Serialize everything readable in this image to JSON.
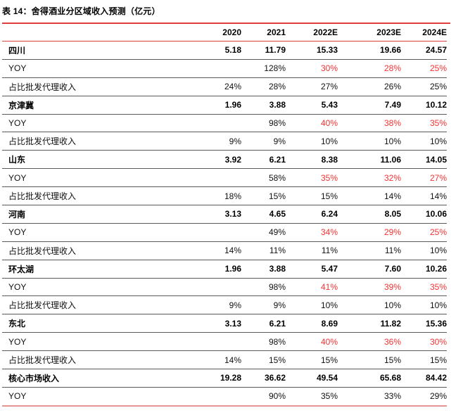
{
  "title": "表 14：舍得酒业分区域收入预测（亿元）",
  "colors": {
    "accent_red": "#e03c3c",
    "value_red": "#f53232",
    "row_separator": "#595959",
    "bottom_line": "#e59494",
    "text": "#111111"
  },
  "table": {
    "columns": [
      "",
      "2020",
      "2021",
      "2022E",
      "2023E",
      "2024E"
    ],
    "rows": [
      {
        "label": "四川",
        "bold": true,
        "values": [
          "5.18",
          "11.79",
          "15.33",
          "19.66",
          "24.57"
        ],
        "red": []
      },
      {
        "label": "YOY",
        "bold": false,
        "values": [
          "",
          "128%",
          "30%",
          "28%",
          "25%"
        ],
        "red": [
          2,
          3,
          4
        ]
      },
      {
        "label": "占比批发代理收入",
        "bold": false,
        "values": [
          "24%",
          "28%",
          "27%",
          "26%",
          "25%"
        ],
        "red": []
      },
      {
        "label": "京津冀",
        "bold": true,
        "values": [
          "1.96",
          "3.88",
          "5.43",
          "7.49",
          "10.12"
        ],
        "red": []
      },
      {
        "label": "YOY",
        "bold": false,
        "values": [
          "",
          "98%",
          "40%",
          "38%",
          "35%"
        ],
        "red": [
          2,
          3,
          4
        ]
      },
      {
        "label": "占比批发代理收入",
        "bold": false,
        "values": [
          "9%",
          "9%",
          "10%",
          "10%",
          "10%"
        ],
        "red": []
      },
      {
        "label": "山东",
        "bold": true,
        "values": [
          "3.92",
          "6.21",
          "8.38",
          "11.06",
          "14.05"
        ],
        "red": []
      },
      {
        "label": "YOY",
        "bold": false,
        "values": [
          "",
          "58%",
          "35%",
          "32%",
          "27%"
        ],
        "red": [
          2,
          3,
          4
        ]
      },
      {
        "label": "占比批发代理收入",
        "bold": false,
        "values": [
          "18%",
          "15%",
          "15%",
          "14%",
          "14%"
        ],
        "red": []
      },
      {
        "label": "河南",
        "bold": true,
        "values": [
          "3.13",
          "4.65",
          "6.24",
          "8.05",
          "10.06"
        ],
        "red": []
      },
      {
        "label": "YOY",
        "bold": false,
        "values": [
          "",
          "49%",
          "34%",
          "29%",
          "25%"
        ],
        "red": [
          2,
          3,
          4
        ]
      },
      {
        "label": "占比批发代理收入",
        "bold": false,
        "values": [
          "14%",
          "11%",
          "11%",
          "11%",
          "10%"
        ],
        "red": []
      },
      {
        "label": "环太湖",
        "bold": true,
        "values": [
          "1.96",
          "3.88",
          "5.47",
          "7.60",
          "10.26"
        ],
        "red": []
      },
      {
        "label": "YOY",
        "bold": false,
        "values": [
          "",
          "98%",
          "41%",
          "39%",
          "35%"
        ],
        "red": [
          2,
          3,
          4
        ]
      },
      {
        "label": "占比批发代理收入",
        "bold": false,
        "values": [
          "9%",
          "9%",
          "10%",
          "10%",
          "10%"
        ],
        "red": []
      },
      {
        "label": "东北",
        "bold": true,
        "values": [
          "3.13",
          "6.21",
          "8.69",
          "11.82",
          "15.36"
        ],
        "red": []
      },
      {
        "label": "YOY",
        "bold": false,
        "values": [
          "",
          "98%",
          "40%",
          "36%",
          "30%"
        ],
        "red": [
          2,
          3,
          4
        ]
      },
      {
        "label": "占比批发代理收入",
        "bold": false,
        "values": [
          "14%",
          "15%",
          "15%",
          "15%",
          "15%"
        ],
        "red": []
      },
      {
        "label": "核心市场收入",
        "bold": true,
        "values": [
          "19.28",
          "36.62",
          "49.54",
          "65.68",
          "84.42"
        ],
        "red": []
      },
      {
        "label": "YOY",
        "bold": false,
        "values": [
          "",
          "90%",
          "35%",
          "33%",
          "29%"
        ],
        "red": []
      }
    ]
  }
}
